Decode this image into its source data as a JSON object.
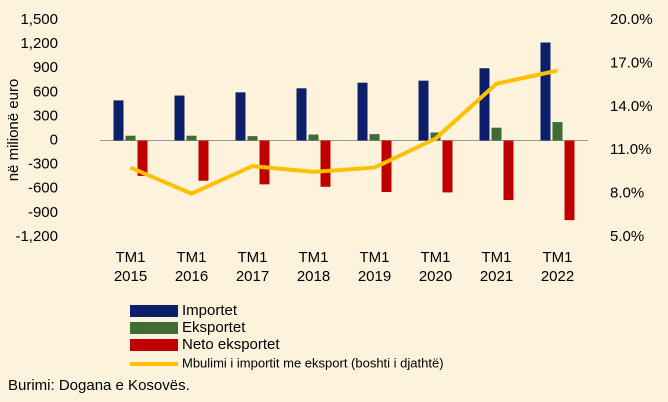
{
  "chart_data": {
    "type": "bar_line",
    "y_label": "në milionë euro",
    "source": "Burimi: Dogana e Kosovës.",
    "categories": [
      "TM1 2015",
      "TM1 2016",
      "TM1 2017",
      "TM1 2018",
      "TM1 2019",
      "TM1 2020",
      "TM1 2021",
      "TM1 2022"
    ],
    "series": [
      {
        "name": "Importet",
        "color": "#0d1f6b",
        "values": [
          500,
          560,
          600,
          650,
          720,
          745,
          900,
          1220
        ]
      },
      {
        "name": "Eksportet",
        "color": "#3f6b34",
        "values": [
          60,
          60,
          55,
          75,
          80,
          100,
          160,
          230
        ]
      },
      {
        "name": "Neto eksportet",
        "color": "#c00000",
        "values": [
          -440,
          -500,
          -545,
          -575,
          -640,
          -645,
          -740,
          -990
        ]
      },
      {
        "name": "Mbulimi i importit me eksport (boshti i djathtë)",
        "color": "#ffc000",
        "axis": "y2",
        "values": [
          9.8,
          8.0,
          9.9,
          9.5,
          9.8,
          11.8,
          15.6,
          16.5
        ]
      }
    ],
    "ylim": [
      -1200,
      1500
    ],
    "yticks": [
      {
        "value": -1200,
        "label": "-1,200"
      },
      -900,
      -600,
      -300,
      0,
      300,
      600,
      900,
      {
        "value": 1200,
        "label": "1,200"
      },
      {
        "value": 1500,
        "label": "1,500"
      }
    ],
    "y2lim": [
      5,
      20
    ],
    "y2ticks": [
      {
        "value": 5,
        "label": "5.0%"
      },
      {
        "value": 8,
        "label": "8.0%"
      },
      {
        "value": 11,
        "label": "11.0%"
      },
      {
        "value": 14,
        "label": "14.0%"
      },
      {
        "value": 17,
        "label": "17.0%"
      },
      {
        "value": 20,
        "label": "20.0%"
      }
    ]
  }
}
